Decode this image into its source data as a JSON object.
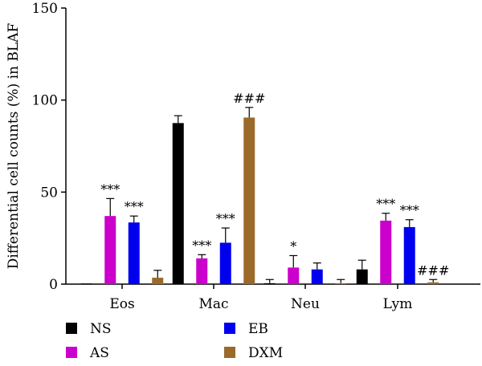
{
  "chart_data": {
    "type": "bar",
    "title": "",
    "xlabel": "",
    "ylabel": "Differential cell counts (%) in BLAF",
    "ylim": [
      0,
      150
    ],
    "yticks": [
      0,
      50,
      100,
      150
    ],
    "grid": false,
    "legend_position": "bottom",
    "categories": [
      "Eos",
      "Mac",
      "Neu",
      "Lym"
    ],
    "series": [
      {
        "name": "NS",
        "color": "#000000",
        "values": [
          0,
          87.5,
          0.5,
          8
        ],
        "errors": [
          0,
          4,
          2,
          5
        ],
        "annotations": [
          "",
          "",
          "",
          ""
        ]
      },
      {
        "name": "AS",
        "color": "#cc00cc",
        "values": [
          37,
          14,
          9,
          34.5
        ],
        "errors": [
          9.5,
          2,
          6.5,
          4
        ],
        "annotations": [
          "***",
          "***",
          "*",
          "***"
        ]
      },
      {
        "name": "EB",
        "color": "#0000ee",
        "values": [
          33.5,
          22.5,
          8,
          31
        ],
        "errors": [
          3.5,
          8,
          3.5,
          4
        ],
        "annotations": [
          "***",
          "***",
          "",
          "***"
        ]
      },
      {
        "name": "DXM",
        "color": "#9b6a2a",
        "values": [
          3.5,
          90.5,
          0.5,
          1
        ],
        "errors": [
          4,
          5.5,
          2,
          1.5
        ],
        "annotations": [
          "",
          "###",
          "",
          "###"
        ]
      }
    ]
  }
}
